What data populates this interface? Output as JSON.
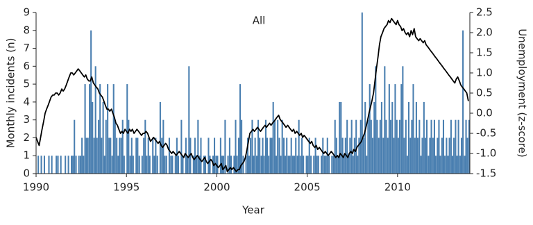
{
  "chart_data": {
    "type": "bar",
    "title": "All",
    "xlabel": "Year",
    "ylabel": "Monthly incidents (n)",
    "y2label": "Unemployment (z-score)",
    "x": [
      1990,
      1990.08,
      1990.17,
      1990.25,
      1990.33,
      1990.42,
      1990.5,
      1990.58,
      1990.67,
      1990.75,
      1990.83,
      1990.92,
      1991,
      1991.08,
      1991.17,
      1991.25,
      1991.33,
      1991.42,
      1991.5,
      1991.58,
      1991.67,
      1991.75,
      1991.83,
      1991.92,
      1992,
      1992.08,
      1992.17,
      1992.25,
      1992.33,
      1992.42,
      1992.5,
      1992.58,
      1992.67,
      1992.75,
      1992.83,
      1992.92,
      1993,
      1993.08,
      1993.17,
      1993.25,
      1993.33,
      1993.42,
      1993.5,
      1993.58,
      1993.67,
      1993.75,
      1993.83,
      1993.92,
      1994,
      1994.08,
      1994.17,
      1994.25,
      1994.33,
      1994.42,
      1994.5,
      1994.58,
      1994.67,
      1994.75,
      1994.83,
      1994.92,
      1995,
      1995.08,
      1995.17,
      1995.25,
      1995.33,
      1995.42,
      1995.5,
      1995.58,
      1995.67,
      1995.75,
      1995.83,
      1995.92,
      1996,
      1996.08,
      1996.17,
      1996.25,
      1996.33,
      1996.42,
      1996.5,
      1996.58,
      1996.67,
      1996.75,
      1996.83,
      1996.92,
      1997,
      1997.08,
      1997.17,
      1997.25,
      1997.33,
      1997.42,
      1997.5,
      1997.58,
      1997.67,
      1997.75,
      1997.83,
      1997.92,
      1998,
      1998.08,
      1998.17,
      1998.25,
      1998.33,
      1998.42,
      1998.5,
      1998.58,
      1998.67,
      1998.75,
      1998.83,
      1998.92,
      1999,
      1999.08,
      1999.17,
      1999.25,
      1999.33,
      1999.42,
      1999.5,
      1999.58,
      1999.67,
      1999.75,
      1999.83,
      1999.92,
      2000,
      2000.08,
      2000.17,
      2000.25,
      2000.33,
      2000.42,
      2000.5,
      2000.58,
      2000.67,
      2000.75,
      2000.83,
      2000.92,
      2001,
      2001.08,
      2001.17,
      2001.25,
      2001.33,
      2001.42,
      2001.5,
      2001.58,
      2001.67,
      2001.75,
      2001.83,
      2001.92,
      2002,
      2002.08,
      2002.17,
      2002.25,
      2002.33,
      2002.42,
      2002.5,
      2002.58,
      2002.67,
      2002.75,
      2002.83,
      2002.92,
      2003,
      2003.08,
      2003.17,
      2003.25,
      2003.33,
      2003.42,
      2003.5,
      2003.58,
      2003.67,
      2003.75,
      2003.83,
      2003.92,
      2004,
      2004.08,
      2004.17,
      2004.25,
      2004.33,
      2004.42,
      2004.5,
      2004.58,
      2004.67,
      2004.75,
      2004.83,
      2004.92,
      2005,
      2005.08,
      2005.17,
      2005.25,
      2005.33,
      2005.42,
      2005.5,
      2005.58,
      2005.67,
      2005.75,
      2005.83,
      2005.92,
      2006,
      2006.08,
      2006.17,
      2006.25,
      2006.33,
      2006.42,
      2006.5,
      2006.58,
      2006.67,
      2006.75,
      2006.83,
      2006.92,
      2007,
      2007.08,
      2007.17,
      2007.25,
      2007.33,
      2007.42,
      2007.5,
      2007.58,
      2007.67,
      2007.75,
      2007.83,
      2007.92,
      2008,
      2008.08,
      2008.17,
      2008.25,
      2008.33,
      2008.42,
      2008.5,
      2008.58,
      2008.67,
      2008.75,
      2008.83,
      2008.92,
      2009,
      2009.08,
      2009.17,
      2009.25,
      2009.33,
      2009.42,
      2009.5,
      2009.58,
      2009.67,
      2009.75,
      2009.83,
      2009.92,
      2010,
      2010.08,
      2010.17,
      2010.25,
      2010.33,
      2010.42,
      2010.5,
      2010.58,
      2010.67,
      2010.75,
      2010.83,
      2010.92,
      2011,
      2011.08,
      2011.17,
      2011.25,
      2011.33,
      2011.42,
      2011.5,
      2011.58,
      2011.67,
      2011.75,
      2011.83,
      2011.92,
      2012,
      2012.08,
      2012.17,
      2012.25,
      2012.33,
      2012.42,
      2012.5,
      2012.58,
      2012.67,
      2012.75,
      2012.83,
      2012.92,
      2013,
      2013.08,
      2013.17,
      2013.25,
      2013.33,
      2013.42,
      2013.5,
      2013.58,
      2013.67,
      2013.75,
      2013.83,
      2013.92
    ],
    "series": [
      {
        "type": "bar",
        "color": "#4a7fb0",
        "values": [
          0,
          1,
          0,
          1,
          0,
          1,
          0,
          0,
          1,
          0,
          1,
          0,
          0,
          1,
          1,
          0,
          1,
          0,
          0,
          1,
          0,
          1,
          0,
          1,
          1,
          3,
          1,
          0,
          1,
          1,
          2,
          1,
          5,
          2,
          2,
          5,
          8,
          4,
          2,
          6,
          2,
          3,
          5,
          2,
          4,
          1,
          3,
          5,
          2,
          2,
          1,
          5,
          3,
          2,
          1,
          2,
          2,
          3,
          1,
          0,
          5,
          3,
          1,
          2,
          1,
          0,
          2,
          2,
          1,
          0,
          1,
          2,
          3,
          1,
          2,
          1,
          0,
          2,
          1,
          2,
          1,
          0,
          4,
          2,
          3,
          1,
          1,
          0,
          2,
          1,
          1,
          0,
          1,
          2,
          1,
          0,
          3,
          1,
          0,
          2,
          1,
          6,
          2,
          0,
          1,
          2,
          1,
          3,
          1,
          2,
          0,
          1,
          1,
          0,
          2,
          1,
          0,
          1,
          2,
          1,
          1,
          0,
          2,
          1,
          1,
          3,
          0,
          1,
          2,
          1,
          0,
          1,
          3,
          1,
          2,
          5,
          3,
          1,
          0,
          1,
          2,
          1,
          2,
          3,
          1,
          2,
          1,
          3,
          2,
          1,
          2,
          1,
          3,
          2,
          1,
          2,
          2,
          4,
          3,
          1,
          3,
          2,
          1,
          3,
          2,
          1,
          2,
          1,
          1,
          2,
          1,
          1,
          2,
          1,
          3,
          1,
          2,
          1,
          0,
          1,
          1,
          2,
          1,
          0,
          1,
          2,
          1,
          1,
          0,
          1,
          2,
          1,
          1,
          2,
          1,
          0,
          1,
          1,
          3,
          2,
          1,
          4,
          4,
          2,
          1,
          2,
          3,
          1,
          2,
          3,
          1,
          2,
          3,
          1,
          2,
          3,
          9,
          2,
          4,
          1,
          3,
          5,
          3,
          2,
          4,
          6,
          3,
          2,
          3,
          4,
          2,
          6,
          3,
          2,
          5,
          3,
          4,
          2,
          5,
          3,
          2,
          3,
          5,
          6,
          2,
          3,
          1,
          4,
          2,
          3,
          5,
          2,
          4,
          2,
          3,
          1,
          2,
          4,
          2,
          3,
          1,
          2,
          3,
          2,
          3,
          1,
          2,
          3,
          1,
          2,
          3,
          1,
          2,
          1,
          2,
          3,
          1,
          2,
          3,
          1,
          3,
          1,
          2,
          8,
          1,
          3,
          2,
          3
        ]
      },
      {
        "type": "line",
        "axis": "y2",
        "color": "#000000",
        "values": [
          -0.6,
          -0.7,
          -0.8,
          -0.6,
          -0.4,
          -0.2,
          0.0,
          0.1,
          0.2,
          0.3,
          0.4,
          0.45,
          0.45,
          0.5,
          0.5,
          0.45,
          0.5,
          0.6,
          0.55,
          0.6,
          0.7,
          0.8,
          0.9,
          1.0,
          1.0,
          0.95,
          1.0,
          1.05,
          1.1,
          1.05,
          1.0,
          0.95,
          0.9,
          0.95,
          0.85,
          0.8,
          0.8,
          0.9,
          0.75,
          0.7,
          0.65,
          0.6,
          0.5,
          0.45,
          0.4,
          0.3,
          0.2,
          0.1,
          0.1,
          0.05,
          0.1,
          0.0,
          -0.1,
          -0.25,
          -0.3,
          -0.4,
          -0.5,
          -0.45,
          -0.5,
          -0.4,
          -0.45,
          -0.5,
          -0.4,
          -0.45,
          -0.4,
          -0.5,
          -0.45,
          -0.4,
          -0.45,
          -0.5,
          -0.55,
          -0.5,
          -0.5,
          -0.45,
          -0.5,
          -0.6,
          -0.7,
          -0.65,
          -0.6,
          -0.65,
          -0.7,
          -0.75,
          -0.7,
          -0.8,
          -0.85,
          -0.8,
          -0.75,
          -0.8,
          -0.9,
          -0.95,
          -1.0,
          -0.95,
          -1.0,
          -1.05,
          -1.0,
          -0.95,
          -1.0,
          -1.05,
          -1.1,
          -1.0,
          -1.05,
          -1.1,
          -1.05,
          -1.0,
          -1.1,
          -1.15,
          -1.1,
          -1.05,
          -1.1,
          -1.15,
          -1.2,
          -1.15,
          -1.1,
          -1.2,
          -1.25,
          -1.2,
          -1.15,
          -1.2,
          -1.3,
          -1.25,
          -1.3,
          -1.35,
          -1.3,
          -1.25,
          -1.4,
          -1.35,
          -1.3,
          -1.45,
          -1.4,
          -1.35,
          -1.4,
          -1.35,
          -1.4,
          -1.45,
          -1.4,
          -1.4,
          -1.3,
          -1.25,
          -1.2,
          -1.1,
          -0.9,
          -0.7,
          -0.5,
          -0.45,
          -0.4,
          -0.45,
          -0.4,
          -0.35,
          -0.4,
          -0.45,
          -0.4,
          -0.35,
          -0.3,
          -0.35,
          -0.3,
          -0.25,
          -0.3,
          -0.25,
          -0.2,
          -0.15,
          -0.1,
          -0.05,
          -0.15,
          -0.2,
          -0.25,
          -0.3,
          -0.35,
          -0.3,
          -0.35,
          -0.4,
          -0.45,
          -0.4,
          -0.5,
          -0.45,
          -0.5,
          -0.55,
          -0.5,
          -0.6,
          -0.55,
          -0.6,
          -0.65,
          -0.7,
          -0.75,
          -0.7,
          -0.8,
          -0.85,
          -0.8,
          -0.9,
          -0.85,
          -0.9,
          -0.95,
          -1.0,
          -0.95,
          -1.0,
          -1.05,
          -1.0,
          -0.95,
          -1.0,
          -1.05,
          -1.1,
          -1.05,
          -1.1,
          -1.0,
          -1.05,
          -1.1,
          -1.0,
          -1.05,
          -1.1,
          -1.0,
          -0.95,
          -1.0,
          -0.9,
          -0.95,
          -0.85,
          -0.8,
          -0.75,
          -0.7,
          -0.6,
          -0.5,
          -0.35,
          -0.2,
          0.0,
          0.15,
          0.3,
          0.5,
          0.8,
          1.1,
          1.4,
          1.7,
          1.9,
          2.0,
          2.1,
          2.15,
          2.2,
          2.3,
          2.25,
          2.35,
          2.3,
          2.25,
          2.2,
          2.3,
          2.2,
          2.15,
          2.05,
          2.1,
          2.0,
          1.95,
          2.0,
          1.9,
          2.05,
          1.95,
          2.1,
          1.9,
          1.85,
          1.8,
          1.85,
          1.8,
          1.75,
          1.8,
          1.7,
          1.65,
          1.6,
          1.55,
          1.5,
          1.45,
          1.4,
          1.35,
          1.3,
          1.25,
          1.2,
          1.15,
          1.1,
          1.05,
          1.0,
          0.95,
          0.9,
          0.85,
          0.8,
          0.75,
          0.85,
          0.9,
          0.8,
          0.7,
          0.65,
          0.6,
          0.55,
          0.5,
          0.3
        ]
      }
    ],
    "xlim": [
      1990,
      2014
    ],
    "xticks": [
      1990,
      1995,
      2000,
      2005,
      2010
    ],
    "ylim": [
      0,
      9
    ],
    "yticks": [
      0,
      1,
      2,
      3,
      4,
      5,
      6,
      7,
      8,
      9
    ],
    "y2lim": [
      -1.5,
      2.5
    ],
    "y2ticks": [
      -1.5,
      {
        "value": -1,
        "label": "-1.0"
      },
      -0.5,
      {
        "value": 0,
        "label": "0.0"
      },
      0.5,
      {
        "value": 1,
        "label": "1.0"
      },
      1.5,
      {
        "value": 2,
        "label": "2.0"
      },
      2.5
    ]
  }
}
